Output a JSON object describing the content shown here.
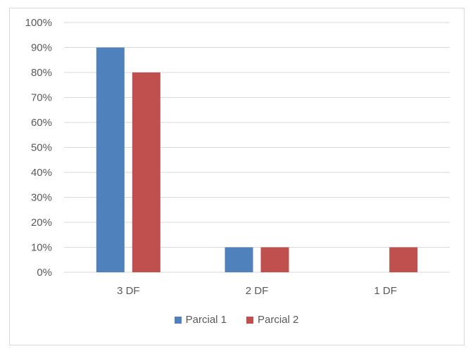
{
  "chart_data": {
    "type": "bar",
    "categories": [
      "3 DF",
      "2 DF",
      "1 DF"
    ],
    "series": [
      {
        "name": "Parcial 1",
        "values": [
          90,
          10,
          0
        ],
        "color": "#4F81BD"
      },
      {
        "name": "Parcial 2",
        "values": [
          80,
          10,
          10
        ],
        "color": "#C0504D"
      }
    ],
    "ylim": [
      0,
      100
    ],
    "yticks": [
      0,
      10,
      20,
      30,
      40,
      50,
      60,
      70,
      80,
      90,
      100
    ],
    "ytick_labels": [
      "0%",
      "10%",
      "20%",
      "30%",
      "40%",
      "50%",
      "60%",
      "70%",
      "80%",
      "90%",
      "100%"
    ],
    "grid": true,
    "legend_position": "bottom",
    "gridline_color": "#d9d9d9"
  }
}
